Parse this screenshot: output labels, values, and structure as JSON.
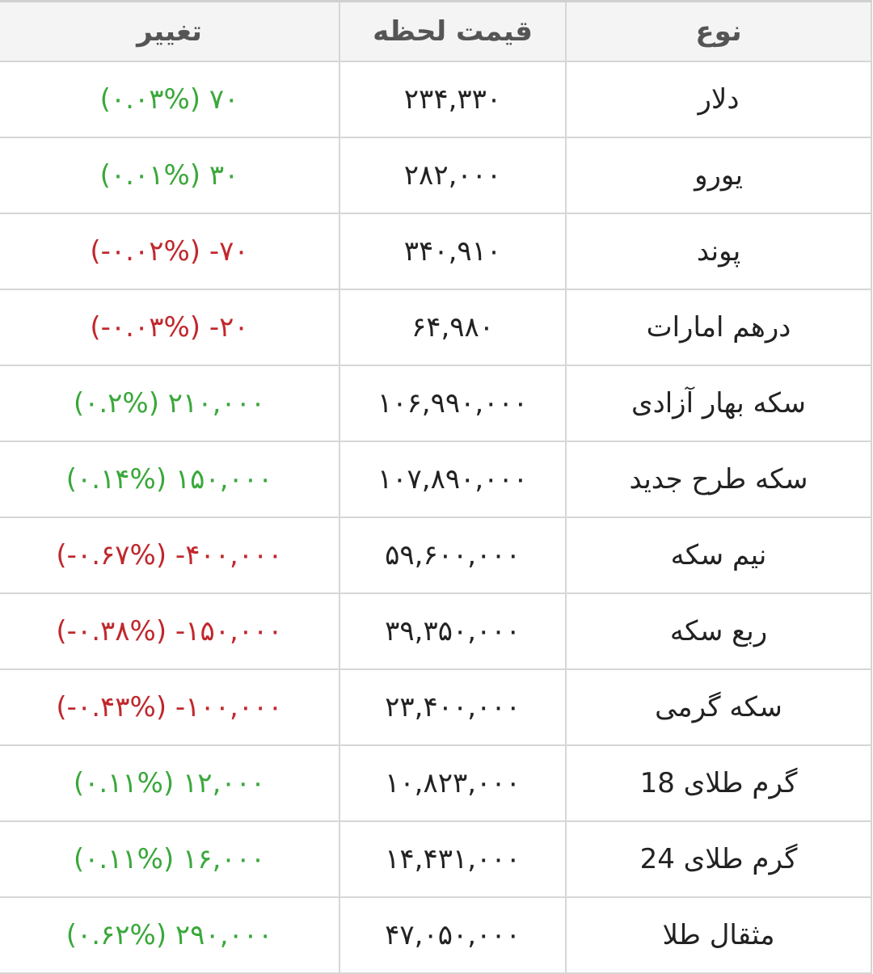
{
  "header": {
    "change": "تغییر",
    "price": "قیمت لحظه",
    "type": "نوع"
  },
  "colors": {
    "positive": "#3aa83a",
    "negative": "#c0282d"
  },
  "rows": [
    {
      "type": "دلار",
      "price": "۲۳۴,۳۳۰",
      "change": "(۰.۰۳%) ۷۰",
      "dir": "pos"
    },
    {
      "type": "یورو",
      "price": "۲۸۲,۰۰۰",
      "change": "(۰.۰۱%) ۳۰",
      "dir": "pos"
    },
    {
      "type": "پوند",
      "price": "۳۴۰,۹۱۰",
      "change": "(-۰.۰۲%) -۷۰",
      "dir": "neg"
    },
    {
      "type": "درهم امارات",
      "price": "۶۴,۹۸۰",
      "change": "(-۰.۰۳%) -۲۰",
      "dir": "neg"
    },
    {
      "type": "سکه بهار آزادی",
      "price": "۱۰۶,۹۹۰,۰۰۰",
      "change": "(۰.۲%) ۲۱۰,۰۰۰",
      "dir": "pos"
    },
    {
      "type": "سکه طرح جدید",
      "price": "۱۰۷,۸۹۰,۰۰۰",
      "change": "(۰.۱۴%) ۱۵۰,۰۰۰",
      "dir": "pos"
    },
    {
      "type": "نیم سکه",
      "price": "۵۹,۶۰۰,۰۰۰",
      "change": "(-۰.۶۷%) -۴۰۰,۰۰۰",
      "dir": "neg"
    },
    {
      "type": "ربع سکه",
      "price": "۳۹,۳۵۰,۰۰۰",
      "change": "(-۰.۳۸%) -۱۵۰,۰۰۰",
      "dir": "neg"
    },
    {
      "type": "سکه گرمی",
      "price": "۲۳,۴۰۰,۰۰۰",
      "change": "(-۰.۴۳%) -۱۰۰,۰۰۰",
      "dir": "neg"
    },
    {
      "type": "گرم طلای 18",
      "price": "۱۰,۸۲۳,۰۰۰",
      "change": "(۰.۱۱%) ۱۲,۰۰۰",
      "dir": "pos"
    },
    {
      "type": "گرم طلای 24",
      "price": "۱۴,۴۳۱,۰۰۰",
      "change": "(۰.۱۱%) ۱۶,۰۰۰",
      "dir": "pos"
    },
    {
      "type": "مثقال طلا",
      "price": "۴۷,۰۵۰,۰۰۰",
      "change": "(۰.۶۲%) ۲۹۰,۰۰۰",
      "dir": "pos"
    }
  ]
}
